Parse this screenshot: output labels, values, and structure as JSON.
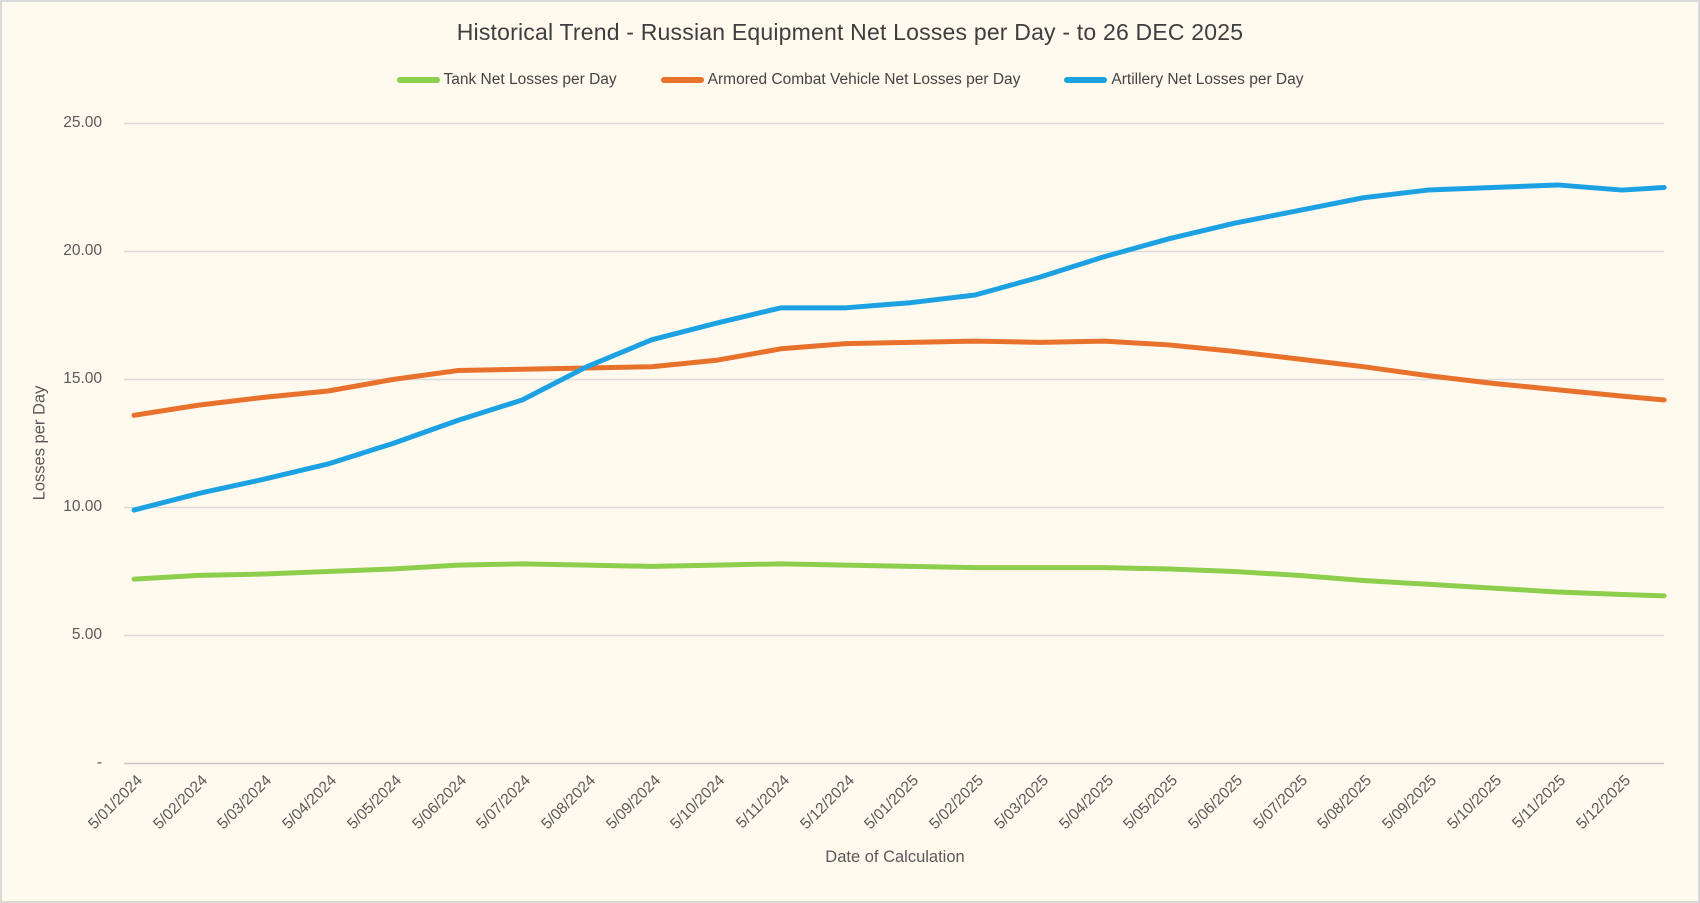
{
  "window": {
    "background_color": "#FFF9EE",
    "border_color": "#D9D9D9",
    "text_color": "#595959"
  },
  "chart_data": {
    "type": "line",
    "title": "Historical Trend - Russian Equipment Net Losses per Day - to 26 DEC 2025",
    "xlabel": "Date of Calculation",
    "ylabel": "Losses per Day",
    "ylim": [
      0,
      25
    ],
    "grid": "horizontal-only",
    "legend_position": "top",
    "gridline_color": "#DADADA",
    "baseline_color": "#C4C4C4",
    "y_ticks": [
      {
        "value": 0,
        "label": "-"
      },
      {
        "value": 5,
        "label": "5.00"
      },
      {
        "value": 10,
        "label": "10.00"
      },
      {
        "value": 15,
        "label": "15.00"
      },
      {
        "value": 20,
        "label": "20.00"
      },
      {
        "value": 25,
        "label": "25.00"
      }
    ],
    "x_labels": [
      "5/01/2024",
      "5/02/2024",
      "5/03/2024",
      "5/04/2024",
      "5/05/2024",
      "5/06/2024",
      "5/07/2024",
      "5/08/2024",
      "5/09/2024",
      "5/10/2024",
      "5/11/2024",
      "5/12/2024",
      "5/01/2025",
      "5/02/2025",
      "5/03/2025",
      "5/04/2025",
      "5/05/2025",
      "5/06/2025",
      "5/07/2025",
      "5/08/2025",
      "5/09/2025",
      "5/10/2025",
      "5/11/2025",
      "5/12/2025"
    ],
    "x_positions_month_index": [
      0,
      1,
      2,
      3,
      4,
      5,
      6,
      7,
      8,
      9,
      10,
      11,
      12,
      13,
      14,
      15,
      16,
      17,
      18,
      19,
      20,
      21,
      22,
      23,
      23.65
    ],
    "series_end_date": "26 DEC 2025",
    "series": [
      {
        "name": "Tank Net Losses per Day",
        "color": "#8DCE4D",
        "values": [
          7.2,
          7.35,
          7.4,
          7.5,
          7.6,
          7.75,
          7.8,
          7.75,
          7.7,
          7.75,
          7.8,
          7.75,
          7.7,
          7.65,
          7.65,
          7.65,
          7.6,
          7.5,
          7.35,
          7.15,
          7.0,
          6.85,
          6.7,
          6.6,
          6.55
        ]
      },
      {
        "name": "Armored Combat Vehicle Net Losses per Day",
        "color": "#E8712C",
        "values": [
          13.6,
          14.0,
          14.3,
          14.55,
          15.0,
          15.35,
          15.4,
          15.45,
          15.5,
          15.75,
          16.2,
          16.4,
          16.45,
          16.5,
          16.45,
          16.5,
          16.35,
          16.1,
          15.8,
          15.5,
          15.15,
          14.85,
          14.6,
          14.35,
          14.2
        ]
      },
      {
        "name": "Artillery Net Losses per Day",
        "color": "#1CA2E3",
        "values": [
          9.9,
          10.55,
          11.1,
          11.7,
          12.5,
          13.4,
          14.2,
          15.5,
          16.55,
          17.2,
          17.8,
          17.8,
          18.0,
          18.3,
          19.0,
          19.8,
          20.5,
          21.1,
          21.6,
          22.1,
          22.4,
          22.5,
          22.6,
          22.4,
          22.5
        ]
      }
    ]
  }
}
